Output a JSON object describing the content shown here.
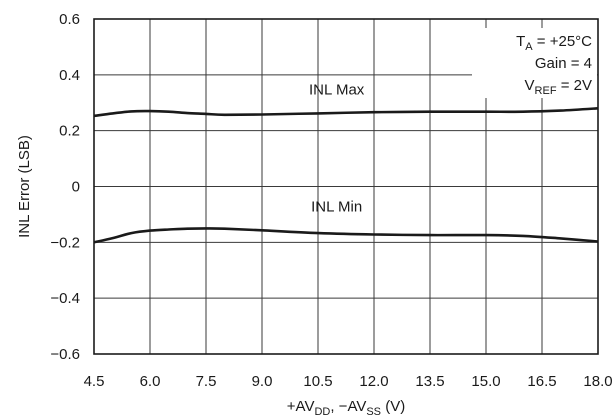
{
  "chart_data": {
    "type": "line",
    "title": "",
    "xlabel": {
      "parts": [
        {
          "t": "+AV",
          "sub": false
        },
        {
          "t": "DD",
          "sub": true
        },
        {
          "t": ", −AV",
          "sub": false
        },
        {
          "t": "SS",
          "sub": true
        },
        {
          "t": " (V)",
          "sub": false
        }
      ]
    },
    "ylabel": "INL Error (LSB)",
    "xlim": [
      4.5,
      18.0
    ],
    "ylim": [
      -0.6,
      0.6
    ],
    "grid": true,
    "x_ticks": [
      4.5,
      6.0,
      7.5,
      9.0,
      10.5,
      12.0,
      13.5,
      15.0,
      16.5,
      18.0
    ],
    "x_tick_labels": [
      "4.5",
      "6.0",
      "7.5",
      "9.0",
      "10.5",
      "12.0",
      "13.5",
      "15.0",
      "16.5",
      "18.0"
    ],
    "y_ticks": [
      0.6,
      0.4,
      0.2,
      0,
      -0.2,
      -0.4,
      -0.6
    ],
    "y_tick_labels": [
      "0.6",
      "0.4",
      "0.2",
      "0",
      "−0.2",
      "−0.4",
      "−0.6"
    ],
    "conditions": [
      {
        "parts": [
          {
            "t": "T",
            "sub": false
          },
          {
            "t": "A",
            "sub": true
          },
          {
            "t": " = +25°C",
            "sub": false
          }
        ]
      },
      {
        "parts": [
          {
            "t": "Gain = 4",
            "sub": false
          }
        ]
      },
      {
        "parts": [
          {
            "t": "V",
            "sub": false
          },
          {
            "t": "REF",
            "sub": true
          },
          {
            "t": " = 2V",
            "sub": false
          }
        ]
      }
    ],
    "series": [
      {
        "name": "INL Max",
        "color": "#1a1a1a",
        "x": [
          4.5,
          5.0,
          5.5,
          6.0,
          6.5,
          7.0,
          7.5,
          8.0,
          9.0,
          10.5,
          12.0,
          13.5,
          15.0,
          16.0,
          17.0,
          18.0
        ],
        "y": [
          0.253,
          0.262,
          0.269,
          0.27,
          0.268,
          0.263,
          0.26,
          0.257,
          0.258,
          0.262,
          0.266,
          0.268,
          0.268,
          0.268,
          0.272,
          0.28
        ]
      },
      {
        "name": "INL Min",
        "color": "#1a1a1a",
        "x": [
          4.5,
          5.0,
          5.5,
          6.0,
          6.5,
          7.0,
          7.5,
          8.0,
          9.0,
          10.5,
          12.0,
          13.5,
          15.0,
          16.0,
          17.0,
          18.0
        ],
        "y": [
          -0.2,
          -0.185,
          -0.167,
          -0.158,
          -0.154,
          -0.151,
          -0.15,
          -0.151,
          -0.157,
          -0.167,
          -0.172,
          -0.174,
          -0.174,
          -0.177,
          -0.186,
          -0.197
        ]
      }
    ],
    "series_labels": [
      {
        "text": "INL Max",
        "x": 11.0,
        "y": 0.33
      },
      {
        "text": "INL Min",
        "x": 11.0,
        "y": -0.09
      }
    ]
  }
}
